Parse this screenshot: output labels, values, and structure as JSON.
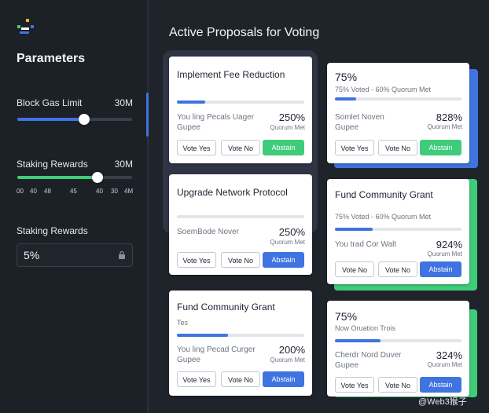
{
  "sidebar": {
    "title": "Parameters",
    "block_gas": {
      "label": "Block Gas Limit",
      "value": "30M",
      "level": 0.58
    },
    "staking": {
      "label": "Staking Rewards",
      "value": "30M",
      "level": 0.7,
      "ticks": [
        "00",
        "40",
        "48",
        "45",
        "40",
        "30",
        "4M"
      ]
    },
    "staking2": {
      "label": "Staking Rewards",
      "value": "5%"
    }
  },
  "main": {
    "heading": "Active Proposals for Voting",
    "cards": [
      {
        "title": "Implement Fee Reduction",
        "progress": 0.22,
        "text1": "You ling Pecals Uager",
        "text2": "Gupee",
        "big": "250%",
        "small": "Quorum Met",
        "btn1": "Vote Yes",
        "btn2": "Vote No",
        "btn3": "Abstain"
      },
      {
        "title": "Upgrade Network Protocol",
        "text1": "SoemBode Nover",
        "big": "250%",
        "small": "Quorum Met",
        "btn1": "Vote Yes",
        "btn2": "Vote No",
        "btn3": "Abstain"
      },
      {
        "title": "Fund Community Grant",
        "sub": "Tes",
        "progress": 0.4,
        "text1": "You ling Pecad Curger",
        "text2": "Gupee",
        "big": "200%",
        "small": "Quorum Met",
        "btn1": "Vote Yes",
        "btn2": "Vote No",
        "btn3": "Abstain"
      },
      {
        "title": "75%",
        "sub": "75% Voted - 60% Quorum Met",
        "progress": 0.17,
        "text1": "Somlet Noven",
        "text2": "Gupee",
        "big": "828%",
        "small": "Quorum Met",
        "btn1": "Vote Yes",
        "btn2": "Vote No",
        "btn3": "Abstain"
      },
      {
        "title": "Fund Community Grant",
        "sub": "75% Voted - 60% Quorum Met",
        "progress": 0.3,
        "text1": "You trad Cor Walt",
        "big": "924%",
        "small": "Quorum Met",
        "btn1": "Vote No",
        "btn2": "Vote No",
        "btn3": "Abstain"
      },
      {
        "title": "75%",
        "sub": "Now Oruation Trois",
        "progress": 0.36,
        "text1": "Cherdr Nord Duver",
        "text2": "Gupee",
        "big": "324%",
        "small": "Quorum Met",
        "btn1": "Vote Yes",
        "btn2": "Vote No",
        "btn3": "Abstain"
      }
    ]
  },
  "watermark": "@Web3猴子",
  "colors": {
    "accent": "#3f74e0",
    "green": "#3fcc7a",
    "card_bg": "#ffffff",
    "bg": "#1b1e24"
  }
}
